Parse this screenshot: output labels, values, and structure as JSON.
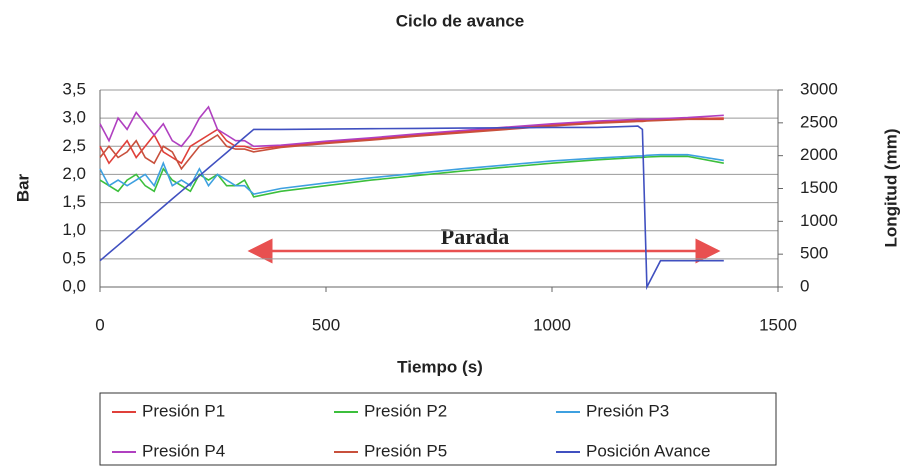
{
  "chart_data": {
    "type": "line",
    "title": "Ciclo de avance",
    "x_label": "Tiempo (s)",
    "y_label": "Bar",
    "y2_label": "Longitud (mm)",
    "annotation": "Parada",
    "grid": true,
    "xlim": [
      0,
      1500
    ],
    "xticks": [
      0,
      500,
      1000,
      1500
    ],
    "ylim": [
      0,
      3.5
    ],
    "yticks": [
      {
        "value": 0,
        "label": "0,0"
      },
      {
        "value": 0.5,
        "label": "0,5"
      },
      {
        "value": 1,
        "label": "1,0"
      },
      {
        "value": 1.5,
        "label": "1,5"
      },
      {
        "value": 2,
        "label": "2,0"
      },
      {
        "value": 2.5,
        "label": "2,5"
      },
      {
        "value": 3,
        "label": "3,0"
      },
      {
        "value": 3.5,
        "label": "3,5"
      }
    ],
    "y2lim": [
      0,
      3000
    ],
    "y2ticks": [
      0,
      500,
      1000,
      1500,
      2000,
      2500,
      3000
    ],
    "x": [
      0,
      20,
      40,
      60,
      80,
      100,
      120,
      140,
      160,
      180,
      200,
      220,
      240,
      260,
      280,
      300,
      320,
      340,
      400,
      500,
      600,
      700,
      800,
      900,
      1000,
      1100,
      1190,
      1200,
      1210,
      1240,
      1300,
      1380
    ],
    "series": [
      {
        "name": "Presión P1",
        "color": "#e0403a",
        "values": [
          2.5,
          2.2,
          2.4,
          2.6,
          2.3,
          2.5,
          2.7,
          2.4,
          2.3,
          2.2,
          2.5,
          2.6,
          2.7,
          2.8,
          2.6,
          2.5,
          2.5,
          2.45,
          2.5,
          2.57,
          2.63,
          2.7,
          2.76,
          2.82,
          2.88,
          2.93,
          2.96,
          2.96,
          2.96,
          2.97,
          2.99,
          3.0
        ]
      },
      {
        "name": "Presión P2",
        "color": "#3cbf3c",
        "values": [
          1.9,
          1.8,
          1.7,
          1.9,
          2.0,
          1.8,
          1.7,
          2.1,
          1.9,
          1.8,
          1.7,
          2.0,
          1.9,
          2.0,
          1.8,
          1.8,
          1.9,
          1.6,
          1.7,
          1.8,
          1.9,
          1.98,
          2.06,
          2.13,
          2.2,
          2.26,
          2.3,
          2.3,
          2.31,
          2.32,
          2.32,
          2.2
        ]
      },
      {
        "name": "Presión P3",
        "color": "#3ea0e0",
        "values": [
          2.1,
          1.8,
          1.9,
          1.8,
          1.9,
          2.0,
          1.8,
          2.2,
          1.8,
          1.9,
          1.8,
          2.1,
          1.8,
          2.0,
          1.9,
          1.8,
          1.8,
          1.65,
          1.75,
          1.85,
          1.94,
          2.02,
          2.1,
          2.17,
          2.24,
          2.29,
          2.33,
          2.33,
          2.34,
          2.35,
          2.35,
          2.25
        ]
      },
      {
        "name": "Presión P4",
        "color": "#b040c0",
        "values": [
          2.9,
          2.6,
          3.0,
          2.8,
          3.1,
          2.9,
          2.7,
          2.9,
          2.6,
          2.5,
          2.7,
          3.0,
          3.2,
          2.8,
          2.7,
          2.6,
          2.6,
          2.5,
          2.52,
          2.59,
          2.65,
          2.72,
          2.78,
          2.84,
          2.9,
          2.95,
          2.98,
          2.98,
          2.98,
          2.99,
          3.01,
          3.05
        ]
      },
      {
        "name": "Presión P5",
        "color": "#c8503c",
        "values": [
          2.3,
          2.5,
          2.3,
          2.4,
          2.6,
          2.3,
          2.2,
          2.5,
          2.4,
          2.1,
          2.3,
          2.5,
          2.6,
          2.7,
          2.5,
          2.45,
          2.45,
          2.4,
          2.48,
          2.55,
          2.61,
          2.68,
          2.74,
          2.8,
          2.86,
          2.91,
          2.94,
          2.94,
          2.95,
          2.96,
          2.98,
          2.98
        ]
      },
      {
        "name": "Posición Avance",
        "color": "#4050c0",
        "axis": "y2",
        "values": [
          400,
          518,
          635,
          753,
          871,
          988,
          1106,
          1224,
          1341,
          1459,
          1576,
          1694,
          1812,
          1929,
          2047,
          2165,
          2282,
          2400,
          2400,
          2405,
          2410,
          2415,
          2420,
          2425,
          2430,
          2430,
          2450,
          2400,
          0,
          400,
          400,
          400
        ]
      }
    ]
  }
}
